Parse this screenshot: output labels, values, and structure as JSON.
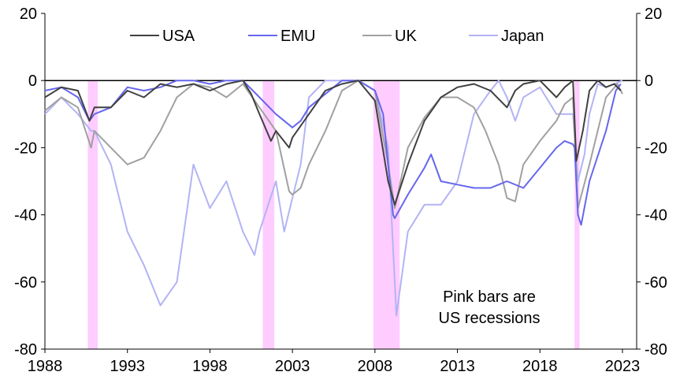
{
  "chart_data": {
    "type": "line",
    "title": "",
    "xlabel": "",
    "ylabel": "",
    "xlim": [
      1988,
      2023.8
    ],
    "ylim": [
      -80,
      20
    ],
    "x_ticks": [
      "1988",
      "1993",
      "1998",
      "2003",
      "2008",
      "2013",
      "2018",
      "2023"
    ],
    "x_tick_values": [
      1988,
      1993,
      1998,
      2003,
      2008,
      2013,
      2018,
      2023
    ],
    "y_ticks": [
      "20",
      "0",
      "-20",
      "-40",
      "-60",
      "-80"
    ],
    "y_tick_values": [
      20,
      0,
      -20,
      -40,
      -60,
      -80
    ],
    "legend_position": "top",
    "annotation": [
      "Pink bars are",
      "US recessions"
    ],
    "recessions": [
      [
        1990.6,
        1991.2
      ],
      [
        2001.2,
        2001.9
      ],
      [
        2007.9,
        2009.5
      ],
      [
        2020.1,
        2020.4
      ]
    ],
    "recession_color": "#ffccff",
    "series": [
      {
        "name": "USA",
        "color": "#404040",
        "points": [
          [
            1988,
            -5
          ],
          [
            1989,
            -2
          ],
          [
            1990,
            -3
          ],
          [
            1990.7,
            -12
          ],
          [
            1991,
            -8
          ],
          [
            1992,
            -8
          ],
          [
            1993,
            -3
          ],
          [
            1994,
            -5
          ],
          [
            1995,
            -1
          ],
          [
            1996,
            -2
          ],
          [
            1997,
            -1
          ],
          [
            1998,
            -3
          ],
          [
            1999,
            -1
          ],
          [
            2000,
            0
          ],
          [
            2000.5,
            -4
          ],
          [
            2001,
            -10
          ],
          [
            2001.7,
            -18
          ],
          [
            2002,
            -15
          ],
          [
            2002.8,
            -20
          ],
          [
            2003,
            -17
          ],
          [
            2004,
            -10
          ],
          [
            2005,
            -3
          ],
          [
            2006,
            -1
          ],
          [
            2007,
            0
          ],
          [
            2008,
            -6
          ],
          [
            2008.8,
            -30
          ],
          [
            2009.2,
            -37
          ],
          [
            2010,
            -25
          ],
          [
            2011,
            -12
          ],
          [
            2012,
            -5
          ],
          [
            2013,
            -2
          ],
          [
            2014,
            -1
          ],
          [
            2015,
            -3
          ],
          [
            2016,
            -8
          ],
          [
            2016.5,
            -3
          ],
          [
            2017,
            -1
          ],
          [
            2018,
            0
          ],
          [
            2019,
            -5
          ],
          [
            2019.5,
            -2
          ],
          [
            2020,
            0
          ],
          [
            2020.2,
            -24
          ],
          [
            2020.6,
            -15
          ],
          [
            2021,
            -3
          ],
          [
            2021.5,
            0
          ],
          [
            2022,
            -2
          ],
          [
            2022.5,
            -1
          ],
          [
            2022.9,
            -3
          ]
        ]
      },
      {
        "name": "EMU",
        "color": "#6666ee",
        "points": [
          [
            1988,
            -3
          ],
          [
            1989,
            -2
          ],
          [
            1990,
            -5
          ],
          [
            1990.7,
            -12
          ],
          [
            1991,
            -10
          ],
          [
            1992,
            -8
          ],
          [
            1993,
            -2
          ],
          [
            1994,
            -3
          ],
          [
            1995,
            -2
          ],
          [
            1996,
            0
          ],
          [
            1997,
            0
          ],
          [
            1998,
            -1
          ],
          [
            1999,
            0
          ],
          [
            2000,
            0
          ],
          [
            2001,
            -5
          ],
          [
            2002,
            -10
          ],
          [
            2002.5,
            -12
          ],
          [
            2003,
            -14
          ],
          [
            2003.5,
            -12
          ],
          [
            2004,
            -8
          ],
          [
            2005,
            -4
          ],
          [
            2006,
            0
          ],
          [
            2007,
            0
          ],
          [
            2008,
            -3
          ],
          [
            2008.5,
            -10
          ],
          [
            2009.1,
            -40
          ],
          [
            2009.2,
            -41
          ],
          [
            2010,
            -34
          ],
          [
            2011,
            -26
          ],
          [
            2011.4,
            -22
          ],
          [
            2012,
            -30
          ],
          [
            2013,
            -31
          ],
          [
            2014,
            -32
          ],
          [
            2015,
            -32
          ],
          [
            2016,
            -30
          ],
          [
            2017,
            -32
          ],
          [
            2018,
            -26
          ],
          [
            2019,
            -20
          ],
          [
            2019.5,
            -18
          ],
          [
            2020,
            -19
          ],
          [
            2020.1,
            -20
          ],
          [
            2020.3,
            -40
          ],
          [
            2020.5,
            -43
          ],
          [
            2021,
            -30
          ],
          [
            2022,
            -15
          ],
          [
            2022.6,
            -3
          ],
          [
            2022.9,
            -1
          ]
        ]
      },
      {
        "name": "UK",
        "color": "#a0a0a0",
        "points": [
          [
            1988,
            -9
          ],
          [
            1989,
            -5
          ],
          [
            1990,
            -8
          ],
          [
            1990.8,
            -20
          ],
          [
            1991,
            -15
          ],
          [
            1992,
            -20
          ],
          [
            1993,
            -25
          ],
          [
            1994,
            -23
          ],
          [
            1995,
            -15
          ],
          [
            1996,
            -5
          ],
          [
            1997,
            -1
          ],
          [
            1998,
            -2
          ],
          [
            1999,
            -5
          ],
          [
            2000,
            -1
          ],
          [
            2001,
            -8
          ],
          [
            2002,
            -15
          ],
          [
            2002.8,
            -33
          ],
          [
            2003,
            -34
          ],
          [
            2003.5,
            -32
          ],
          [
            2004,
            -25
          ],
          [
            2005,
            -15
          ],
          [
            2006,
            -3
          ],
          [
            2007,
            0
          ],
          [
            2008,
            -3
          ],
          [
            2008.8,
            -25
          ],
          [
            2009.2,
            -38
          ],
          [
            2010,
            -20
          ],
          [
            2011,
            -11
          ],
          [
            2012,
            -5
          ],
          [
            2013,
            -5
          ],
          [
            2014,
            -8
          ],
          [
            2014.7,
            -15
          ],
          [
            2015.5,
            -25
          ],
          [
            2016,
            -35
          ],
          [
            2016.5,
            -36
          ],
          [
            2017,
            -25
          ],
          [
            2018,
            -18
          ],
          [
            2019,
            -12
          ],
          [
            2019.5,
            -7
          ],
          [
            2020,
            -5
          ],
          [
            2020.3,
            -38
          ],
          [
            2021,
            -25
          ],
          [
            2022,
            -5
          ],
          [
            2022.7,
            -1
          ],
          [
            2023,
            -4
          ]
        ]
      },
      {
        "name": "Japan",
        "color": "#b3b3f5",
        "points": [
          [
            1988,
            -10
          ],
          [
            1989,
            -5
          ],
          [
            1990,
            -10
          ],
          [
            1990.8,
            -15
          ],
          [
            1991,
            -15
          ],
          [
            1992,
            -25
          ],
          [
            1993,
            -45
          ],
          [
            1994,
            -55
          ],
          [
            1995,
            -67
          ],
          [
            1996,
            -60
          ],
          [
            1997,
            -25
          ],
          [
            1998,
            -38
          ],
          [
            1999,
            -30
          ],
          [
            2000,
            -45
          ],
          [
            2000.7,
            -52
          ],
          [
            2001,
            -45
          ],
          [
            2002,
            -30
          ],
          [
            2002.5,
            -45
          ],
          [
            2003,
            -35
          ],
          [
            2003.5,
            -25
          ],
          [
            2004,
            -5
          ],
          [
            2005,
            0
          ],
          [
            2006,
            0
          ],
          [
            2007,
            0
          ],
          [
            2008,
            -3
          ],
          [
            2008.8,
            -20
          ],
          [
            2009.3,
            -70
          ],
          [
            2010,
            -45
          ],
          [
            2011,
            -37
          ],
          [
            2012,
            -37
          ],
          [
            2013,
            -30
          ],
          [
            2014,
            -10
          ],
          [
            2015,
            -3
          ],
          [
            2015.5,
            0
          ],
          [
            2016,
            -5
          ],
          [
            2016.5,
            -12
          ],
          [
            2017,
            -5
          ],
          [
            2018,
            -2
          ],
          [
            2019,
            -10
          ],
          [
            2020,
            -10
          ],
          [
            2020.3,
            -30
          ],
          [
            2020.7,
            -22
          ],
          [
            2021,
            -10
          ],
          [
            2021.5,
            -1
          ],
          [
            2022,
            -2
          ],
          [
            2023,
            0
          ]
        ]
      }
    ]
  }
}
